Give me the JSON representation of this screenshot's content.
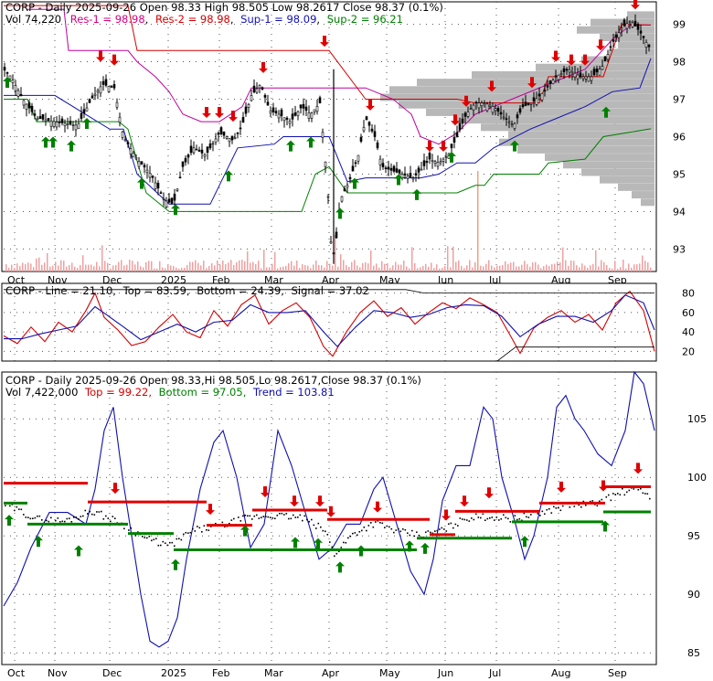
{
  "chart_data": [
    {
      "type": "candlestick",
      "symbol": "CORP",
      "header": {
        "title": "CORP - Daily 2025-09-26 Open 98.33  High 98.505  Low 98.2617  Close 98.37 (0.1%)",
        "vol": "Vol 74,220",
        "res1": "Res-1 = 98.98",
        "res2": "Res-2 = 98.98",
        "sup1": "Sup-1 = 98.09",
        "sup2": "Sup-2 = 96.21"
      },
      "ylim": [
        92.4,
        99.6
      ],
      "yticks": [
        "99",
        "98",
        "97",
        "96",
        "95",
        "94",
        "93"
      ],
      "xticks": [
        "Oct",
        "Nov",
        "Dec",
        "2025",
        "Feb",
        "Mar",
        "Apr",
        "May",
        "Jun",
        "Jul",
        "Aug",
        "Sep"
      ],
      "close_path": [
        [
          0,
          97.9
        ],
        [
          12,
          97.6
        ],
        [
          25,
          97.0
        ],
        [
          40,
          96.5
        ],
        [
          60,
          96.4
        ],
        [
          85,
          96.3
        ],
        [
          100,
          97.0
        ],
        [
          112,
          97.4
        ],
        [
          125,
          97.3
        ],
        [
          135,
          96.0
        ],
        [
          150,
          95.4
        ],
        [
          165,
          95.0
        ],
        [
          180,
          94.3
        ],
        [
          190,
          94.2
        ],
        [
          200,
          95.2
        ],
        [
          212,
          95.7
        ],
        [
          225,
          95.5
        ],
        [
          240,
          96.1
        ],
        [
          255,
          95.9
        ],
        [
          265,
          96.3
        ],
        [
          275,
          97.1
        ],
        [
          285,
          97.4
        ],
        [
          295,
          96.7
        ],
        [
          305,
          96.6
        ],
        [
          318,
          96.4
        ],
        [
          330,
          96.8
        ],
        [
          340,
          96.6
        ],
        [
          350,
          96.9
        ],
        [
          358,
          94.8
        ],
        [
          362,
          93.2
        ],
        [
          366,
          92.8
        ],
        [
          372,
          94.3
        ],
        [
          382,
          94.8
        ],
        [
          392,
          95.5
        ],
        [
          400,
          96.5
        ],
        [
          410,
          96.0
        ],
        [
          418,
          95.2
        ],
        [
          428,
          95.1
        ],
        [
          440,
          95.0
        ],
        [
          452,
          94.9
        ],
        [
          460,
          95.1
        ],
        [
          470,
          95.4
        ],
        [
          480,
          95.3
        ],
        [
          490,
          95.5
        ],
        [
          500,
          96.0
        ],
        [
          510,
          96.6
        ],
        [
          520,
          96.9
        ],
        [
          530,
          96.9
        ],
        [
          540,
          96.8
        ],
        [
          552,
          96.5
        ],
        [
          562,
          96.3
        ],
        [
          572,
          96.8
        ],
        [
          582,
          96.9
        ],
        [
          595,
          97.2
        ],
        [
          608,
          97.6
        ],
        [
          622,
          97.8
        ],
        [
          635,
          97.6
        ],
        [
          648,
          97.6
        ],
        [
          660,
          97.9
        ],
        [
          670,
          98.5
        ],
        [
          680,
          98.9
        ],
        [
          690,
          99.1
        ],
        [
          700,
          98.8
        ],
        [
          710,
          98.4
        ]
      ],
      "volume_annotation": "Vol 74,220"
    },
    {
      "type": "line",
      "header": {
        "title": "CORP - Line = 21.10,",
        "top": "Top = 83.59,",
        "bottom": "Bottom = 24.39,",
        "signal": "Signal = 37.02"
      },
      "ylim": [
        10,
        90
      ],
      "yticks": [
        "80",
        "60",
        "40",
        "20"
      ],
      "series": [
        {
          "color": "#d40000",
          "values": [
            [
              0,
              36
            ],
            [
              15,
              28
            ],
            [
              30,
              45
            ],
            [
              45,
              30
            ],
            [
              60,
              50
            ],
            [
              75,
              40
            ],
            [
              90,
              62
            ],
            [
              100,
              80
            ],
            [
              110,
              55
            ],
            [
              125,
              42
            ],
            [
              140,
              26
            ],
            [
              155,
              30
            ],
            [
              170,
              45
            ],
            [
              185,
              58
            ],
            [
              200,
              40
            ],
            [
              215,
              34
            ],
            [
              230,
              62
            ],
            [
              245,
              46
            ],
            [
              260,
              68
            ],
            [
              275,
              78
            ],
            [
              290,
              48
            ],
            [
              305,
              62
            ],
            [
              320,
              70
            ],
            [
              335,
              55
            ],
            [
              350,
              25
            ],
            [
              360,
              15
            ],
            [
              375,
              40
            ],
            [
              390,
              60
            ],
            [
              405,
              72
            ],
            [
              420,
              56
            ],
            [
              435,
              65
            ],
            [
              450,
              48
            ],
            [
              465,
              60
            ],
            [
              480,
              70
            ],
            [
              495,
              64
            ],
            [
              510,
              75
            ],
            [
              525,
              68
            ],
            [
              540,
              60
            ],
            [
              555,
              35
            ],
            [
              565,
              18
            ],
            [
              580,
              44
            ],
            [
              595,
              55
            ],
            [
              610,
              62
            ],
            [
              625,
              50
            ],
            [
              640,
              58
            ],
            [
              655,
              42
            ],
            [
              670,
              70
            ],
            [
              685,
              82
            ],
            [
              700,
              62
            ],
            [
              712,
              20
            ]
          ]
        },
        {
          "color": "#1010b0",
          "values": [
            [
              0,
              33
            ],
            [
              20,
              33
            ],
            [
              40,
              38
            ],
            [
              60,
              42
            ],
            [
              80,
              46
            ],
            [
              100,
              66
            ],
            [
              115,
              56
            ],
            [
              130,
              46
            ],
            [
              150,
              32
            ],
            [
              170,
              40
            ],
            [
              190,
              48
            ],
            [
              210,
              40
            ],
            [
              230,
              50
            ],
            [
              250,
              52
            ],
            [
              270,
              68
            ],
            [
              290,
              60
            ],
            [
              310,
              60
            ],
            [
              330,
              62
            ],
            [
              350,
              40
            ],
            [
              365,
              25
            ],
            [
              385,
              45
            ],
            [
              405,
              62
            ],
            [
              425,
              60
            ],
            [
              445,
              55
            ],
            [
              465,
              58
            ],
            [
              485,
              65
            ],
            [
              505,
              68
            ],
            [
              525,
              67
            ],
            [
              545,
              56
            ],
            [
              565,
              35
            ],
            [
              585,
              48
            ],
            [
              605,
              56
            ],
            [
              625,
              56
            ],
            [
              645,
              50
            ],
            [
              665,
              62
            ],
            [
              680,
              78
            ],
            [
              700,
              70
            ],
            [
              712,
              42
            ]
          ]
        },
        {
          "color": "#000000",
          "values": [
            [
              0,
              83.6
            ],
            [
              440,
              83.6
            ],
            [
              460,
              80
            ],
            [
              712,
              80
            ]
          ]
        },
        {
          "color": "#000000",
          "values": [
            [
              0,
              10
            ],
            [
              540,
              10
            ],
            [
              560,
              24.4
            ],
            [
              712,
              24.4
            ]
          ]
        }
      ]
    },
    {
      "type": "line",
      "header": {
        "title": "CORP - Daily 2025-09-26 Open 98.33,Hi 98.505,Lo 98.2617,Close 98.37 (0.1%)",
        "vol": "Vol 7,422,000",
        "top": "Top = 99.22,",
        "bottom": "Bottom = 97.05,",
        "trend": "Trend = 103.81"
      },
      "ylim": [
        84,
        109
      ],
      "yticks": [
        "105",
        "100",
        "95",
        "90",
        "85"
      ],
      "series": [
        {
          "color": "#1010b0",
          "values": [
            [
              0,
              89
            ],
            [
              15,
              91
            ],
            [
              30,
              94
            ],
            [
              50,
              97
            ],
            [
              70,
              97
            ],
            [
              90,
              96
            ],
            [
              100,
              99
            ],
            [
              110,
              104
            ],
            [
              120,
              106
            ],
            [
              130,
              100
            ],
            [
              140,
              95
            ],
            [
              150,
              90
            ],
            [
              160,
              86
            ],
            [
              170,
              85.5
            ],
            [
              180,
              86
            ],
            [
              190,
              88
            ],
            [
              200,
              93
            ],
            [
              215,
              99
            ],
            [
              230,
              103
            ],
            [
              240,
              104
            ],
            [
              255,
              100
            ],
            [
              270,
              94
            ],
            [
              285,
              96
            ],
            [
              300,
              104
            ],
            [
              315,
              101
            ],
            [
              330,
              97
            ],
            [
              345,
              93
            ],
            [
              360,
              94
            ],
            [
              375,
              96
            ],
            [
              390,
              96
            ],
            [
              405,
              99
            ],
            [
              415,
              100
            ],
            [
              430,
              96
            ],
            [
              445,
              92
            ],
            [
              460,
              90
            ],
            [
              470,
              93
            ],
            [
              480,
              98
            ],
            [
              495,
              101
            ],
            [
              510,
              101
            ],
            [
              525,
              106
            ],
            [
              535,
              105
            ],
            [
              545,
              100
            ],
            [
              560,
              96
            ],
            [
              570,
              93
            ],
            [
              580,
              95
            ],
            [
              595,
              100
            ],
            [
              605,
              106
            ],
            [
              615,
              107
            ],
            [
              625,
              105
            ],
            [
              635,
              104
            ],
            [
              650,
              102
            ],
            [
              665,
              101
            ],
            [
              680,
              104
            ],
            [
              690,
              109
            ],
            [
              700,
              108
            ],
            [
              712,
              104
            ]
          ]
        },
        {
          "color": "#000000",
          "values": [
            [
              0,
              97.9
            ],
            [
              20,
              97.2
            ],
            [
              40,
              96.5
            ],
            [
              70,
              96.3
            ],
            [
              100,
              97.2
            ],
            [
              130,
              96.2
            ],
            [
              160,
              94.8
            ],
            [
              185,
              94.2
            ],
            [
              210,
              95.5
            ],
            [
              240,
              95.9
            ],
            [
              270,
              96.6
            ],
            [
              300,
              96.8
            ],
            [
              330,
              96.6
            ],
            [
              355,
              95.5
            ],
            [
              365,
              93.5
            ],
            [
              385,
              95.2
            ],
            [
              410,
              96.2
            ],
            [
              435,
              95.4
            ],
            [
              460,
              95.1
            ],
            [
              485,
              95.6
            ],
            [
              510,
              96.6
            ],
            [
              535,
              96.7
            ],
            [
              560,
              96.5
            ],
            [
              590,
              97.0
            ],
            [
              620,
              97.7
            ],
            [
              650,
              97.8
            ],
            [
              680,
              98.8
            ],
            [
              700,
              99.0
            ],
            [
              712,
              98.4
            ]
          ]
        }
      ]
    }
  ]
}
